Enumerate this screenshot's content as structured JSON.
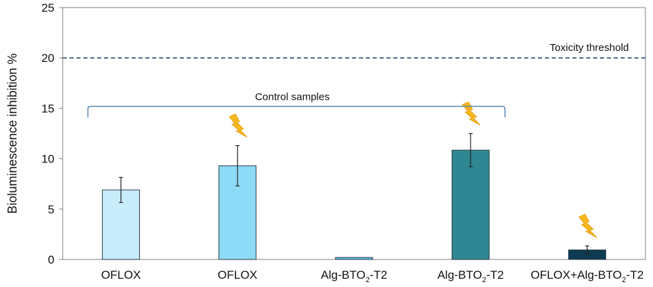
{
  "chart_data": {
    "type": "bar",
    "ylabel": "Bioluminescence inhibition %",
    "ylim": [
      0,
      25
    ],
    "yticks": [
      0,
      5,
      10,
      15,
      20,
      25
    ],
    "grid": false,
    "categories": [
      {
        "base": "OFLOX",
        "sub": "",
        "suffix": ""
      },
      {
        "base": "OFLOX",
        "sub": "",
        "suffix": ""
      },
      {
        "base": "Alg-BTO",
        "sub": "2",
        "suffix": "-T2"
      },
      {
        "base": "Alg-BTO",
        "sub": "2",
        "suffix": "-T2"
      },
      {
        "base": "OFLOX+Alg-BTO",
        "sub": "2",
        "suffix": "-T2"
      }
    ],
    "values": [
      6.9,
      9.3,
      0.2,
      10.85,
      0.95
    ],
    "errors": [
      1.25,
      2.0,
      0.0,
      1.65,
      0.4
    ],
    "irradiated": [
      false,
      true,
      false,
      true,
      true
    ],
    "bar_colors": [
      "#c8ecfa",
      "#8ddbf6",
      "#5cc3e8",
      "#2f8793",
      "#0c3b52"
    ],
    "reference_line": {
      "value": 20,
      "label": "Toxicity threshold",
      "style": "dashed",
      "color": "#2b4a7a"
    },
    "bracket": {
      "label": "Control samples",
      "from_category": 0,
      "to_category": 3,
      "at_value": 15.2,
      "color": "#5b86b0"
    },
    "icon": {
      "name": "lightning-bolt-icon",
      "color": "#f6b71f"
    }
  }
}
